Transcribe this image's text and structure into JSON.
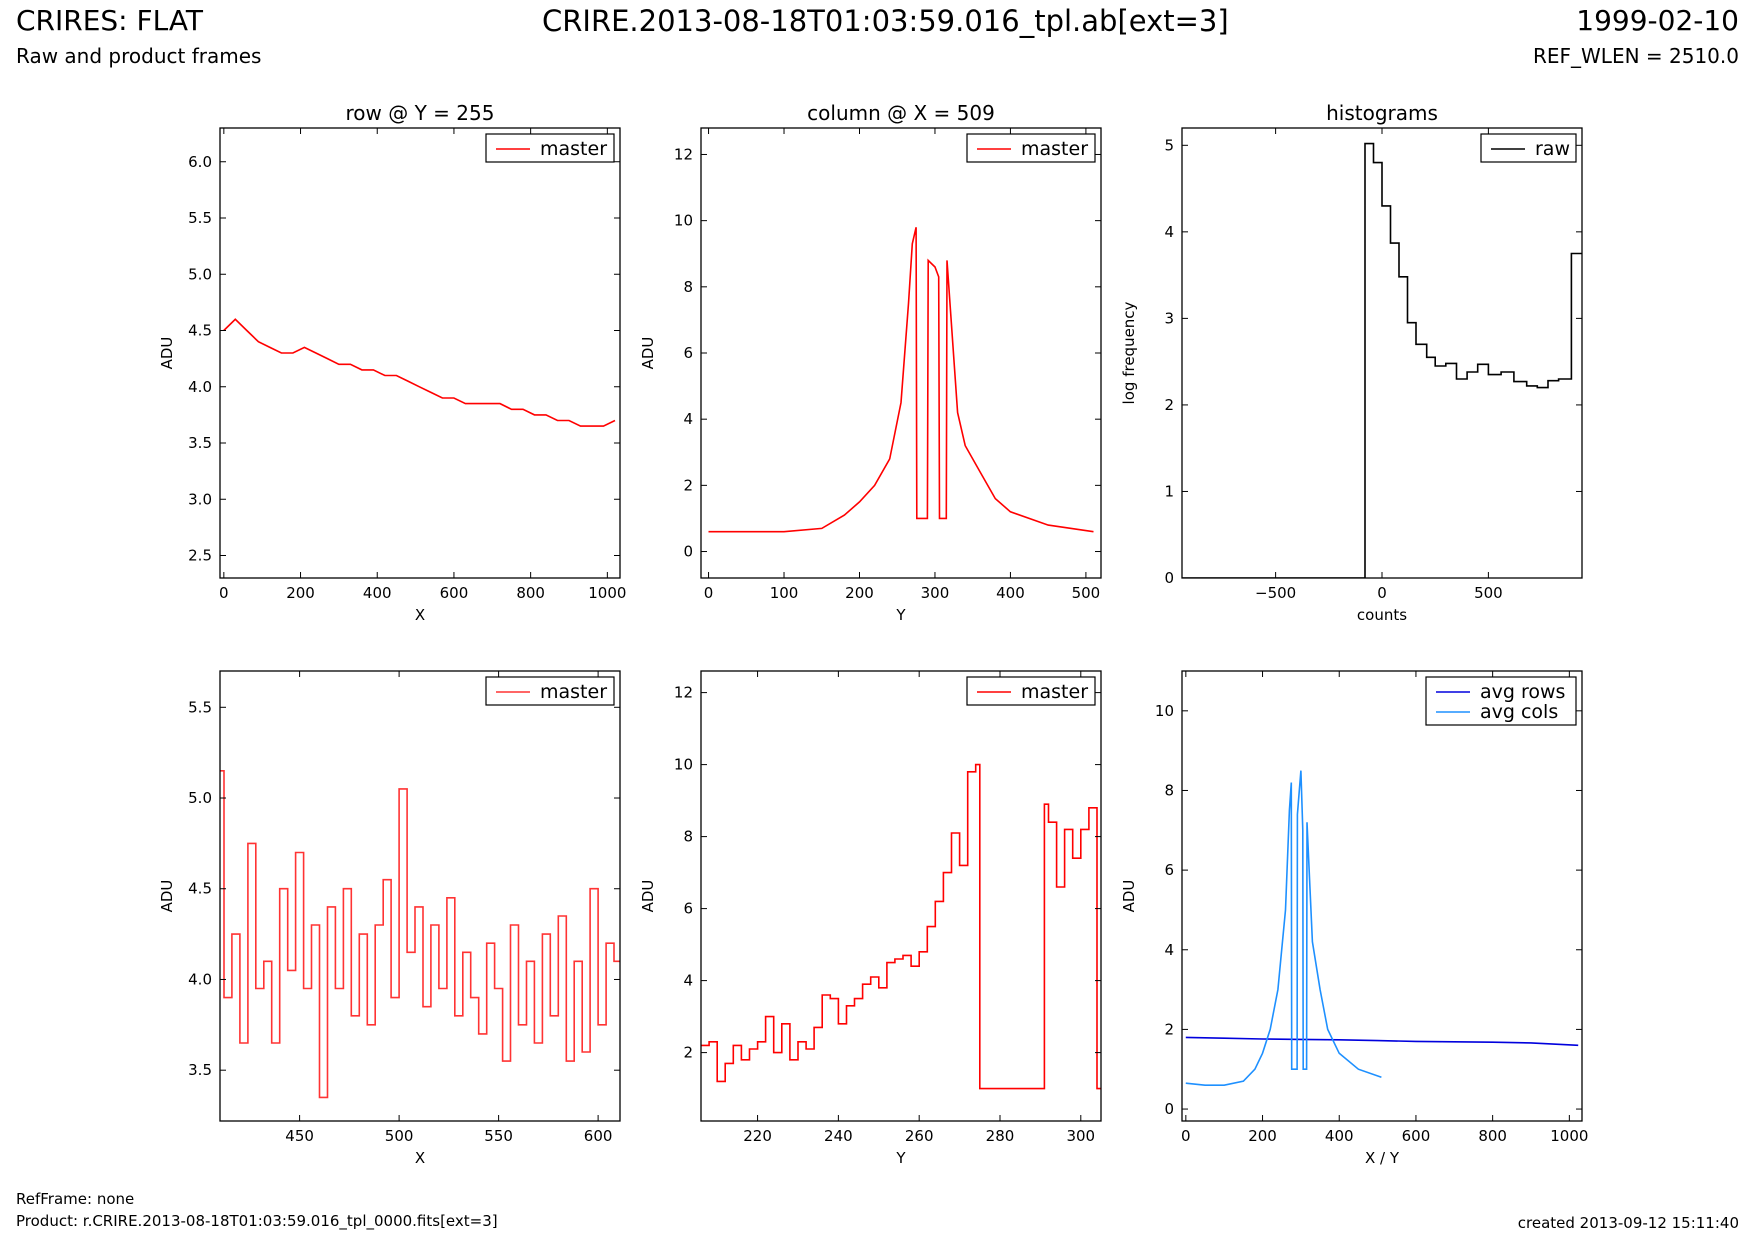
{
  "header": {
    "title": "CRIRES: FLAT",
    "subtitle": "Raw and product frames",
    "file": "CRIRE.2013-08-18T01:03:59.016_tpl.ab[ext=3]",
    "date": "1999-02-10",
    "ref_wlen": "REF_WLEN = 2510.0"
  },
  "footer": {
    "refframe": "RefFrame: none",
    "product": "Product: r.CRIRE.2013-08-18T01:03:59.016_tpl_0000.fits[ext=3]",
    "created": "created 2013-09-12 15:11:40"
  },
  "colors": {
    "red": "#ff0000",
    "red_light": "#ff3333",
    "black": "#000000",
    "blue": "#0000dd",
    "light_blue": "#1e90ff"
  },
  "chart_data": [
    {
      "type": "line",
      "title": "row @ Y = 255",
      "xlabel": "X",
      "ylabel": "ADU",
      "xlim": [
        -10,
        1033
      ],
      "ylim": [
        2.3,
        6.3
      ],
      "xticks": [
        0,
        200,
        400,
        600,
        800,
        1000
      ],
      "yticks": [
        2.5,
        3.0,
        3.5,
        4.0,
        4.5,
        5.0,
        5.5,
        6.0
      ],
      "ytick_format": 1,
      "legend": "top-right",
      "series": [
        {
          "name": "master",
          "color": "#ff0000",
          "style": "line",
          "x": [
            0,
            30,
            60,
            90,
            120,
            150,
            180,
            210,
            240,
            270,
            300,
            330,
            360,
            390,
            420,
            450,
            480,
            510,
            540,
            570,
            600,
            630,
            660,
            690,
            720,
            750,
            780,
            810,
            840,
            870,
            900,
            930,
            960,
            990,
            1020
          ],
          "y": [
            4.5,
            4.6,
            4.5,
            4.4,
            4.35,
            4.3,
            4.3,
            4.35,
            4.3,
            4.25,
            4.2,
            4.2,
            4.15,
            4.15,
            4.1,
            4.1,
            4.05,
            4.0,
            3.95,
            3.9,
            3.9,
            3.85,
            3.85,
            3.85,
            3.85,
            3.8,
            3.8,
            3.75,
            3.75,
            3.7,
            3.7,
            3.65,
            3.65,
            3.65,
            3.7
          ]
        }
      ]
    },
    {
      "type": "line",
      "title": "column @ X = 509",
      "xlabel": "Y",
      "ylabel": "ADU",
      "xlim": [
        -10,
        520
      ],
      "ylim": [
        -0.8,
        12.8
      ],
      "xticks": [
        0,
        100,
        200,
        300,
        400,
        500
      ],
      "yticks": [
        0,
        2,
        4,
        6,
        8,
        10,
        12
      ],
      "ytick_format": 0,
      "legend": "top-right",
      "series": [
        {
          "name": "master",
          "color": "#ff0000",
          "style": "line",
          "x": [
            0,
            50,
            100,
            150,
            180,
            200,
            220,
            240,
            255,
            265,
            270,
            275,
            276,
            290,
            291,
            300,
            305,
            306,
            315,
            316,
            330,
            340,
            360,
            380,
            400,
            450,
            510
          ],
          "y": [
            0.6,
            0.6,
            0.6,
            0.7,
            1.1,
            1.5,
            2.0,
            2.8,
            4.5,
            7.5,
            9.3,
            9.8,
            1.0,
            1.0,
            8.8,
            8.6,
            8.3,
            1.0,
            1.0,
            8.8,
            4.2,
            3.2,
            2.4,
            1.6,
            1.2,
            0.8,
            0.6
          ]
        }
      ]
    },
    {
      "type": "line",
      "title": "histograms",
      "xlabel": "counts",
      "ylabel": "log frequency",
      "xlim": [
        -940,
        940
      ],
      "ylim": [
        0,
        5.2
      ],
      "xticks": [
        -500,
        0,
        500
      ],
      "yticks": [
        0,
        1,
        2,
        3,
        4,
        5
      ],
      "ytick_format": 0,
      "legend": "top-right",
      "series": [
        {
          "name": "raw",
          "color": "#000000",
          "style": "line",
          "x": [
            -940,
            -80,
            -80,
            -40,
            -40,
            0,
            0,
            40,
            40,
            80,
            80,
            120,
            120,
            160,
            160,
            210,
            210,
            250,
            250,
            300,
            300,
            350,
            350,
            400,
            400,
            450,
            450,
            500,
            500,
            560,
            560,
            620,
            620,
            680,
            680,
            730,
            730,
            780,
            780,
            830,
            830,
            890,
            890,
            940,
            940
          ],
          "y": [
            0,
            0,
            5.02,
            5.02,
            4.8,
            4.8,
            4.3,
            4.3,
            3.87,
            3.87,
            3.48,
            3.48,
            2.95,
            2.95,
            2.7,
            2.7,
            2.55,
            2.55,
            2.45,
            2.45,
            2.48,
            2.48,
            2.3,
            2.3,
            2.38,
            2.38,
            2.47,
            2.47,
            2.35,
            2.35,
            2.38,
            2.38,
            2.27,
            2.27,
            2.22,
            2.22,
            2.2,
            2.2,
            2.28,
            2.28,
            2.3,
            2.3,
            3.75,
            3.75,
            3.75
          ]
        }
      ]
    },
    {
      "type": "line",
      "title": "",
      "xlabel": "X",
      "ylabel": "ADU",
      "xlim": [
        410,
        611
      ],
      "ylim": [
        3.22,
        5.7
      ],
      "xticks": [
        450,
        500,
        550,
        600
      ],
      "yticks": [
        3.5,
        4.0,
        4.5,
        5.0,
        5.5
      ],
      "ytick_format": 1,
      "legend": "top-right",
      "series": [
        {
          "name": "master",
          "color": "#ff3333",
          "style": "step",
          "x": [
            410,
            412,
            416,
            420,
            424,
            428,
            432,
            436,
            440,
            444,
            448,
            452,
            456,
            460,
            464,
            468,
            472,
            476,
            480,
            484,
            488,
            492,
            496,
            500,
            504,
            508,
            512,
            516,
            520,
            524,
            528,
            532,
            536,
            540,
            544,
            548,
            552,
            556,
            560,
            564,
            568,
            572,
            576,
            580,
            584,
            588,
            592,
            596,
            600,
            604,
            608
          ],
          "y": [
            5.15,
            3.9,
            4.25,
            3.65,
            4.75,
            3.95,
            4.1,
            3.65,
            4.5,
            4.05,
            4.7,
            3.95,
            4.3,
            3.35,
            4.4,
            3.95,
            4.5,
            3.8,
            4.25,
            3.75,
            4.3,
            4.55,
            3.9,
            5.05,
            4.15,
            4.4,
            3.85,
            4.3,
            3.95,
            4.45,
            3.8,
            4.15,
            3.9,
            3.7,
            4.2,
            3.95,
            3.55,
            4.3,
            3.75,
            4.1,
            3.65,
            4.25,
            3.8,
            4.35,
            3.55,
            4.1,
            3.6,
            4.5,
            3.75,
            4.2,
            4.1
          ]
        }
      ]
    },
    {
      "type": "line",
      "title": "",
      "xlabel": "Y",
      "ylabel": "ADU",
      "xlim": [
        206,
        305
      ],
      "ylim": [
        0.1,
        12.6
      ],
      "xticks": [
        220,
        240,
        260,
        280,
        300
      ],
      "yticks": [
        2,
        4,
        6,
        8,
        10,
        12
      ],
      "ytick_format": 0,
      "legend": "top-right",
      "series": [
        {
          "name": "master",
          "color": "#ff0000",
          "style": "step",
          "x": [
            206,
            208,
            210,
            212,
            214,
            216,
            218,
            220,
            222,
            224,
            226,
            228,
            230,
            232,
            234,
            236,
            238,
            240,
            242,
            244,
            246,
            248,
            250,
            252,
            254,
            256,
            258,
            260,
            262,
            264,
            266,
            268,
            270,
            272,
            274,
            275,
            291,
            292,
            294,
            296,
            298,
            300,
            302,
            304
          ],
          "y": [
            2.2,
            2.3,
            1.2,
            1.7,
            2.2,
            1.8,
            2.1,
            2.3,
            3.0,
            2.0,
            2.8,
            1.8,
            2.3,
            2.1,
            2.7,
            3.6,
            3.5,
            2.8,
            3.3,
            3.5,
            3.9,
            4.1,
            3.8,
            4.5,
            4.6,
            4.7,
            4.4,
            4.8,
            5.5,
            6.2,
            7.0,
            8.1,
            7.2,
            9.8,
            10.0,
            1.0,
            8.9,
            8.4,
            6.6,
            8.2,
            7.4,
            8.2,
            8.8,
            1.0
          ]
        }
      ]
    },
    {
      "type": "line",
      "title": "",
      "xlabel": "X / Y",
      "ylabel": "ADU",
      "xlim": [
        -10,
        1033
      ],
      "ylim": [
        -0.3,
        11.0
      ],
      "xticks": [
        0,
        200,
        400,
        600,
        800,
        1000
      ],
      "yticks": [
        0,
        2,
        4,
        6,
        8,
        10
      ],
      "ytick_format": 0,
      "legend": "top-right",
      "series": [
        {
          "name": "avg rows",
          "color": "#0000dd",
          "style": "line",
          "x": [
            0,
            100,
            200,
            300,
            400,
            500,
            600,
            700,
            800,
            900,
            1023
          ],
          "y": [
            1.8,
            1.78,
            1.76,
            1.75,
            1.74,
            1.72,
            1.7,
            1.69,
            1.68,
            1.66,
            1.6
          ]
        },
        {
          "name": "avg cols",
          "color": "#1e90ff",
          "style": "line",
          "x": [
            0,
            50,
            100,
            150,
            180,
            200,
            220,
            240,
            260,
            270,
            275,
            276,
            290,
            291,
            300,
            305,
            306,
            315,
            316,
            330,
            350,
            370,
            400,
            450,
            510
          ],
          "y": [
            0.65,
            0.6,
            0.6,
            0.7,
            1.0,
            1.4,
            2.0,
            3.0,
            5.0,
            7.5,
            8.2,
            1.0,
            1.0,
            7.4,
            8.5,
            7.0,
            1.0,
            1.0,
            7.2,
            4.2,
            3.0,
            2.0,
            1.4,
            1.0,
            0.8
          ]
        }
      ]
    }
  ]
}
